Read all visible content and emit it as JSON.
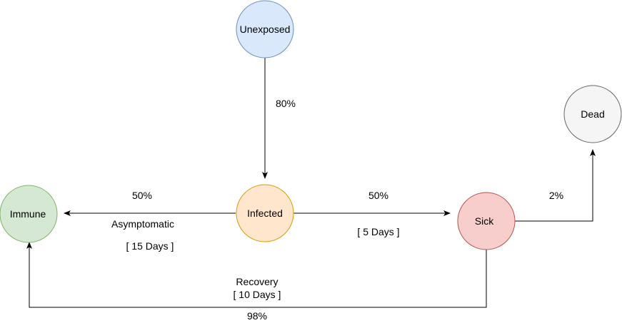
{
  "nodes": {
    "unexposed": {
      "label": "Unexposed",
      "fill": "#dae8fc",
      "stroke": "#6c8ebf"
    },
    "infected": {
      "label": "Infected",
      "fill": "#ffe6cc",
      "stroke": "#d79b00"
    },
    "immune": {
      "label": "Immune",
      "fill": "#d5e8d4",
      "stroke": "#82b366"
    },
    "sick": {
      "label": "Sick",
      "fill": "#f8cecc",
      "stroke": "#b85450"
    },
    "dead": {
      "label": "Dead",
      "fill": "#f5f5f5",
      "stroke": "#666666"
    }
  },
  "edges": {
    "unexposed_to_infected": {
      "probability": "80%"
    },
    "infected_to_immune": {
      "probability": "50%",
      "name": "Asymptomatic",
      "duration": "[ 15 Days ]"
    },
    "infected_to_sick": {
      "probability": "50%",
      "duration": "[ 5 Days ]"
    },
    "sick_to_dead": {
      "probability": "2%"
    },
    "sick_to_immune": {
      "name": "Recovery",
      "duration": "[ 10 Days ]",
      "probability": "98%"
    }
  },
  "colors": {
    "edge": "#000000"
  }
}
